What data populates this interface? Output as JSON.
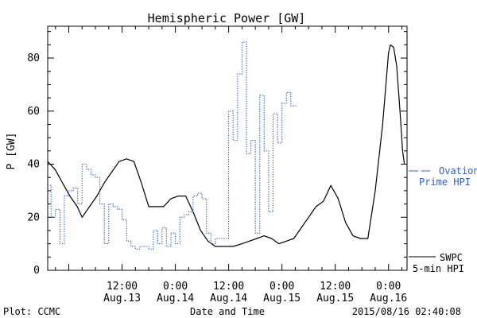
{
  "chart_data": {
    "type": "line",
    "title": "Hemispheric Power [GW]",
    "xlabel": "Date and Time",
    "ylabel": "P [GW]",
    "ylim": [
      0,
      92
    ],
    "yticks": [
      0,
      20,
      40,
      60,
      80
    ],
    "xlim": [
      "2015-08-12 19:15",
      "2015-08-16 04:10"
    ],
    "xticks": [
      {
        "t": "2015-08-13 12:00",
        "time": "12:00",
        "date": "Aug.13"
      },
      {
        "t": "2015-08-14 00:00",
        "time": "0:00",
        "date": "Aug.14"
      },
      {
        "t": "2015-08-14 12:00",
        "time": "12:00",
        "date": "Aug.14"
      },
      {
        "t": "2015-08-15 00:00",
        "time": "0:00",
        "date": "Aug.15"
      },
      {
        "t": "2015-08-15 12:00",
        "time": "12:00",
        "date": "Aug.15"
      },
      {
        "t": "2015-08-16 00:00",
        "time": "0:00",
        "date": "Aug.16"
      }
    ],
    "grid": false,
    "legend_position": "right",
    "series": [
      {
        "name": "SWPC 5-min HPI",
        "color": "#000000",
        "style": "solid",
        "points": [
          [
            "2015-08-12 19:15",
            41
          ],
          [
            "2015-08-12 20:55",
            38
          ],
          [
            "2015-08-12 22:35",
            33
          ],
          [
            "2015-08-13 00:15",
            28
          ],
          [
            "2015-08-13 01:55",
            24
          ],
          [
            "2015-08-13 03:00",
            20
          ],
          [
            "2015-08-13 04:40",
            24
          ],
          [
            "2015-08-13 06:20",
            28
          ],
          [
            "2015-08-13 08:00",
            33
          ],
          [
            "2015-08-13 09:40",
            37
          ],
          [
            "2015-08-13 11:20",
            41
          ],
          [
            "2015-08-13 13:00",
            42
          ],
          [
            "2015-08-13 14:40",
            41
          ],
          [
            "2015-08-13 16:20",
            33
          ],
          [
            "2015-08-13 18:00",
            24
          ],
          [
            "2015-08-13 19:40",
            24
          ],
          [
            "2015-08-13 21:20",
            24
          ],
          [
            "2015-08-13 23:00",
            27
          ],
          [
            "2015-08-14 00:40",
            28
          ],
          [
            "2015-08-14 02:20",
            28
          ],
          [
            "2015-08-14 04:00",
            22
          ],
          [
            "2015-08-14 05:40",
            15
          ],
          [
            "2015-08-14 07:20",
            11
          ],
          [
            "2015-08-14 09:00",
            9
          ],
          [
            "2015-08-14 11:00",
            9
          ],
          [
            "2015-08-14 13:00",
            9
          ],
          [
            "2015-08-14 15:00",
            10
          ],
          [
            "2015-08-14 16:40",
            11
          ],
          [
            "2015-08-14 18:20",
            12
          ],
          [
            "2015-08-14 20:00",
            13
          ],
          [
            "2015-08-14 21:40",
            12
          ],
          [
            "2015-08-14 23:20",
            10
          ],
          [
            "2015-08-15 01:00",
            11
          ],
          [
            "2015-08-15 02:40",
            12
          ],
          [
            "2015-08-15 04:20",
            16
          ],
          [
            "2015-08-15 06:00",
            20
          ],
          [
            "2015-08-15 07:40",
            24
          ],
          [
            "2015-08-15 09:20",
            26
          ],
          [
            "2015-08-15 11:00",
            32
          ],
          [
            "2015-08-15 12:40",
            27
          ],
          [
            "2015-08-15 14:20",
            18
          ],
          [
            "2015-08-15 16:00",
            13
          ],
          [
            "2015-08-15 17:40",
            12
          ],
          [
            "2015-08-15 19:20",
            12
          ],
          [
            "2015-08-15 21:00",
            30
          ],
          [
            "2015-08-15 22:40",
            55
          ],
          [
            "2015-08-16 00:00",
            82
          ],
          [
            "2015-08-16 00:25",
            85
          ],
          [
            "2015-08-16 01:10",
            84
          ],
          [
            "2015-08-16 01:50",
            77
          ],
          [
            "2015-08-16 02:40",
            58
          ],
          [
            "2015-08-16 03:10",
            45
          ],
          [
            "2015-08-16 03:35",
            40
          ]
        ]
      },
      {
        "name": "Ovation Prime HPI",
        "color": "#2f62c8",
        "style": "dotted-step",
        "points": [
          [
            "2015-08-12 19:15",
            32
          ],
          [
            "2015-08-12 20:00",
            20
          ],
          [
            "2015-08-12 21:00",
            23
          ],
          [
            "2015-08-12 22:00",
            10
          ],
          [
            "2015-08-12 23:00",
            28
          ],
          [
            "2015-08-13 00:00",
            30
          ],
          [
            "2015-08-13 01:00",
            31
          ],
          [
            "2015-08-13 02:00",
            25
          ],
          [
            "2015-08-13 03:00",
            40
          ],
          [
            "2015-08-13 04:00",
            38
          ],
          [
            "2015-08-13 05:00",
            36
          ],
          [
            "2015-08-13 06:00",
            35
          ],
          [
            "2015-08-13 07:00",
            25
          ],
          [
            "2015-08-13 08:00",
            10
          ],
          [
            "2015-08-13 09:00",
            25
          ],
          [
            "2015-08-13 10:00",
            24
          ],
          [
            "2015-08-13 11:00",
            23
          ],
          [
            "2015-08-13 12:00",
            19
          ],
          [
            "2015-08-13 13:00",
            11
          ],
          [
            "2015-08-13 14:00",
            9
          ],
          [
            "2015-08-13 15:00",
            8
          ],
          [
            "2015-08-13 16:00",
            9
          ],
          [
            "2015-08-13 17:00",
            9
          ],
          [
            "2015-08-13 18:00",
            8
          ],
          [
            "2015-08-13 19:00",
            15
          ],
          [
            "2015-08-13 20:00",
            10
          ],
          [
            "2015-08-13 21:00",
            16
          ],
          [
            "2015-08-13 22:00",
            9
          ],
          [
            "2015-08-13 23:00",
            14
          ],
          [
            "2015-08-14 00:00",
            10
          ],
          [
            "2015-08-14 01:00",
            20
          ],
          [
            "2015-08-14 02:00",
            21
          ],
          [
            "2015-08-14 03:00",
            22
          ],
          [
            "2015-08-14 04:00",
            28
          ],
          [
            "2015-08-14 05:00",
            29
          ],
          [
            "2015-08-14 06:00",
            27
          ],
          [
            "2015-08-14 07:00",
            14
          ],
          [
            "2015-08-14 08:00",
            10
          ],
          [
            "2015-08-14 09:00",
            12
          ],
          [
            "2015-08-14 10:00",
            12
          ],
          [
            "2015-08-14 11:00",
            12
          ],
          [
            "2015-08-14 12:00",
            60
          ],
          [
            "2015-08-14 13:00",
            49
          ],
          [
            "2015-08-14 14:00",
            74
          ],
          [
            "2015-08-14 15:00",
            86
          ],
          [
            "2015-08-14 16:00",
            44
          ],
          [
            "2015-08-14 17:00",
            49
          ],
          [
            "2015-08-14 18:00",
            14
          ],
          [
            "2015-08-14 19:00",
            66
          ],
          [
            "2015-08-14 20:00",
            45
          ],
          [
            "2015-08-14 21:00",
            22
          ],
          [
            "2015-08-14 22:00",
            59
          ],
          [
            "2015-08-14 23:00",
            48
          ],
          [
            "2015-08-15 00:00",
            63
          ],
          [
            "2015-08-15 01:00",
            67
          ],
          [
            "2015-08-15 02:00",
            62
          ]
        ]
      }
    ],
    "legend": [
      {
        "series": "Ovation Prime HPI",
        "lines": [
          "Ovation",
          "Prime HPI"
        ],
        "color": "#2f62c8"
      },
      {
        "series": "SWPC 5-min HPI",
        "lines": [
          "SWPC",
          "5-min HPI"
        ],
        "color": "#000000"
      }
    ],
    "footer": {
      "left": "Plot: CCMC",
      "center": "Date and Time",
      "right": "2015/08/16 02:40:08"
    }
  }
}
